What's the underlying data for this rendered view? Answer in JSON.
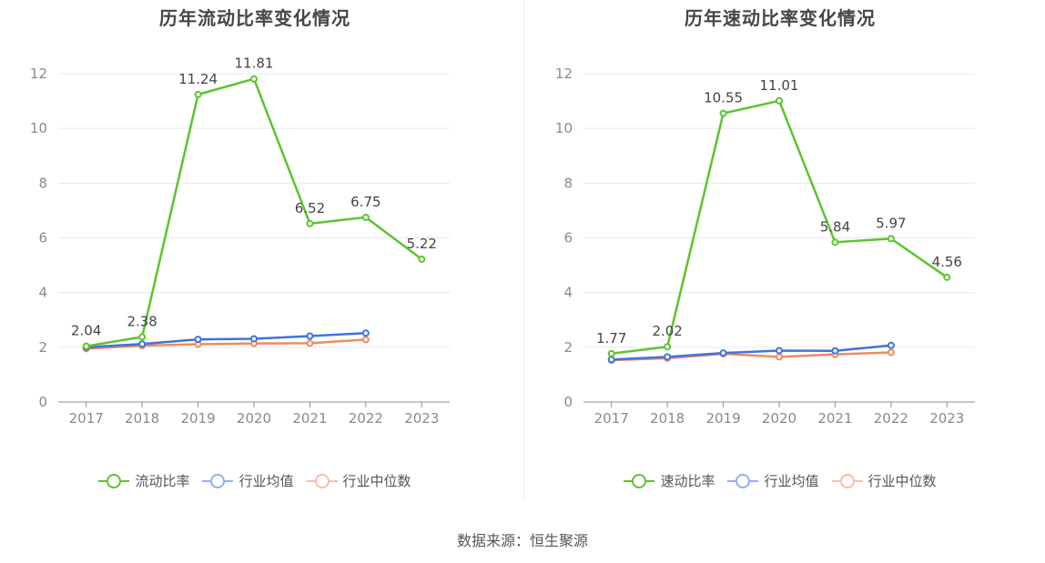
{
  "source": "数据来源：恒生聚源",
  "colors": {
    "main": "#5cc42e",
    "avg": "#3e73e0",
    "median": "#ef8a5f"
  },
  "chart_data": [
    {
      "type": "line",
      "title": "历年流动比率变化情况",
      "categories": [
        "2017",
        "2018",
        "2019",
        "2020",
        "2021",
        "2022",
        "2023"
      ],
      "ylim": [
        0,
        12
      ],
      "yticks": [
        0,
        2,
        4,
        6,
        8,
        10,
        12
      ],
      "grid": true,
      "legend_position": "bottom",
      "series": [
        {
          "name": "流动比率",
          "color": "#5cc42e",
          "values": [
            2.04,
            2.38,
            11.24,
            11.81,
            6.52,
            6.75,
            5.22
          ],
          "labels": true
        },
        {
          "name": "行业均值",
          "color": "#3e73e0",
          "values": [
            2.0,
            2.12,
            2.29,
            2.31,
            2.41,
            2.52,
            null
          ],
          "labels": false
        },
        {
          "name": "行业中位数",
          "color": "#ef8a5f",
          "values": [
            1.95,
            2.06,
            2.11,
            2.14,
            2.15,
            2.28,
            null
          ],
          "labels": false
        }
      ]
    },
    {
      "type": "line",
      "title": "历年速动比率变化情况",
      "categories": [
        "2017",
        "2018",
        "2019",
        "2020",
        "2021",
        "2022",
        "2023"
      ],
      "ylim": [
        0,
        12
      ],
      "yticks": [
        0,
        2,
        4,
        6,
        8,
        10,
        12
      ],
      "grid": true,
      "legend_position": "bottom",
      "series": [
        {
          "name": "速动比率",
          "color": "#5cc42e",
          "values": [
            1.77,
            2.02,
            10.55,
            11.01,
            5.84,
            5.97,
            4.56
          ],
          "labels": true
        },
        {
          "name": "行业均值",
          "color": "#3e73e0",
          "values": [
            1.55,
            1.65,
            1.79,
            1.88,
            1.87,
            2.07,
            null
          ],
          "labels": false
        },
        {
          "name": "行业中位数",
          "color": "#ef8a5f",
          "values": [
            1.53,
            1.6,
            1.76,
            1.65,
            1.74,
            1.81,
            null
          ],
          "labels": false
        }
      ]
    }
  ]
}
